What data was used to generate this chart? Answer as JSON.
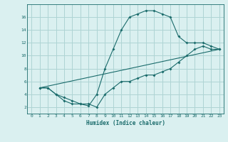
{
  "title": "",
  "xlabel": "Humidex (Indice chaleur)",
  "bg_color": "#daf0f0",
  "grid_color": "#aed4d4",
  "line_color": "#1a6b6b",
  "xlim": [
    -0.5,
    23.5
  ],
  "ylim": [
    1,
    18
  ],
  "xticks": [
    0,
    1,
    2,
    3,
    4,
    5,
    6,
    7,
    8,
    9,
    10,
    11,
    12,
    13,
    14,
    15,
    16,
    17,
    18,
    19,
    20,
    21,
    22,
    23
  ],
  "yticks": [
    2,
    4,
    6,
    8,
    10,
    12,
    14,
    16
  ],
  "line1_x": [
    1,
    2,
    3,
    4,
    5,
    6,
    7,
    8,
    9,
    10,
    11,
    12,
    13,
    14,
    15,
    16,
    17,
    18,
    19,
    20,
    21,
    22,
    23
  ],
  "line1_y": [
    5,
    5,
    4,
    3.5,
    3,
    2.5,
    2.2,
    4,
    8,
    11,
    14,
    16,
    16.5,
    17,
    17,
    16.5,
    16,
    13,
    12,
    12,
    12,
    11.5,
    11
  ],
  "line2_x": [
    1,
    2,
    3,
    4,
    5,
    6,
    7,
    8,
    9,
    10,
    11,
    12,
    13,
    14,
    15,
    16,
    17,
    18,
    19,
    20,
    21,
    22,
    23
  ],
  "line2_y": [
    5,
    5,
    4,
    3,
    2.5,
    2.5,
    2.5,
    2,
    4,
    5,
    6,
    6,
    6.5,
    7,
    7,
    7.5,
    8,
    9,
    10,
    11,
    11.5,
    11,
    11
  ],
  "line3_x": [
    1,
    23
  ],
  "line3_y": [
    5,
    11
  ]
}
